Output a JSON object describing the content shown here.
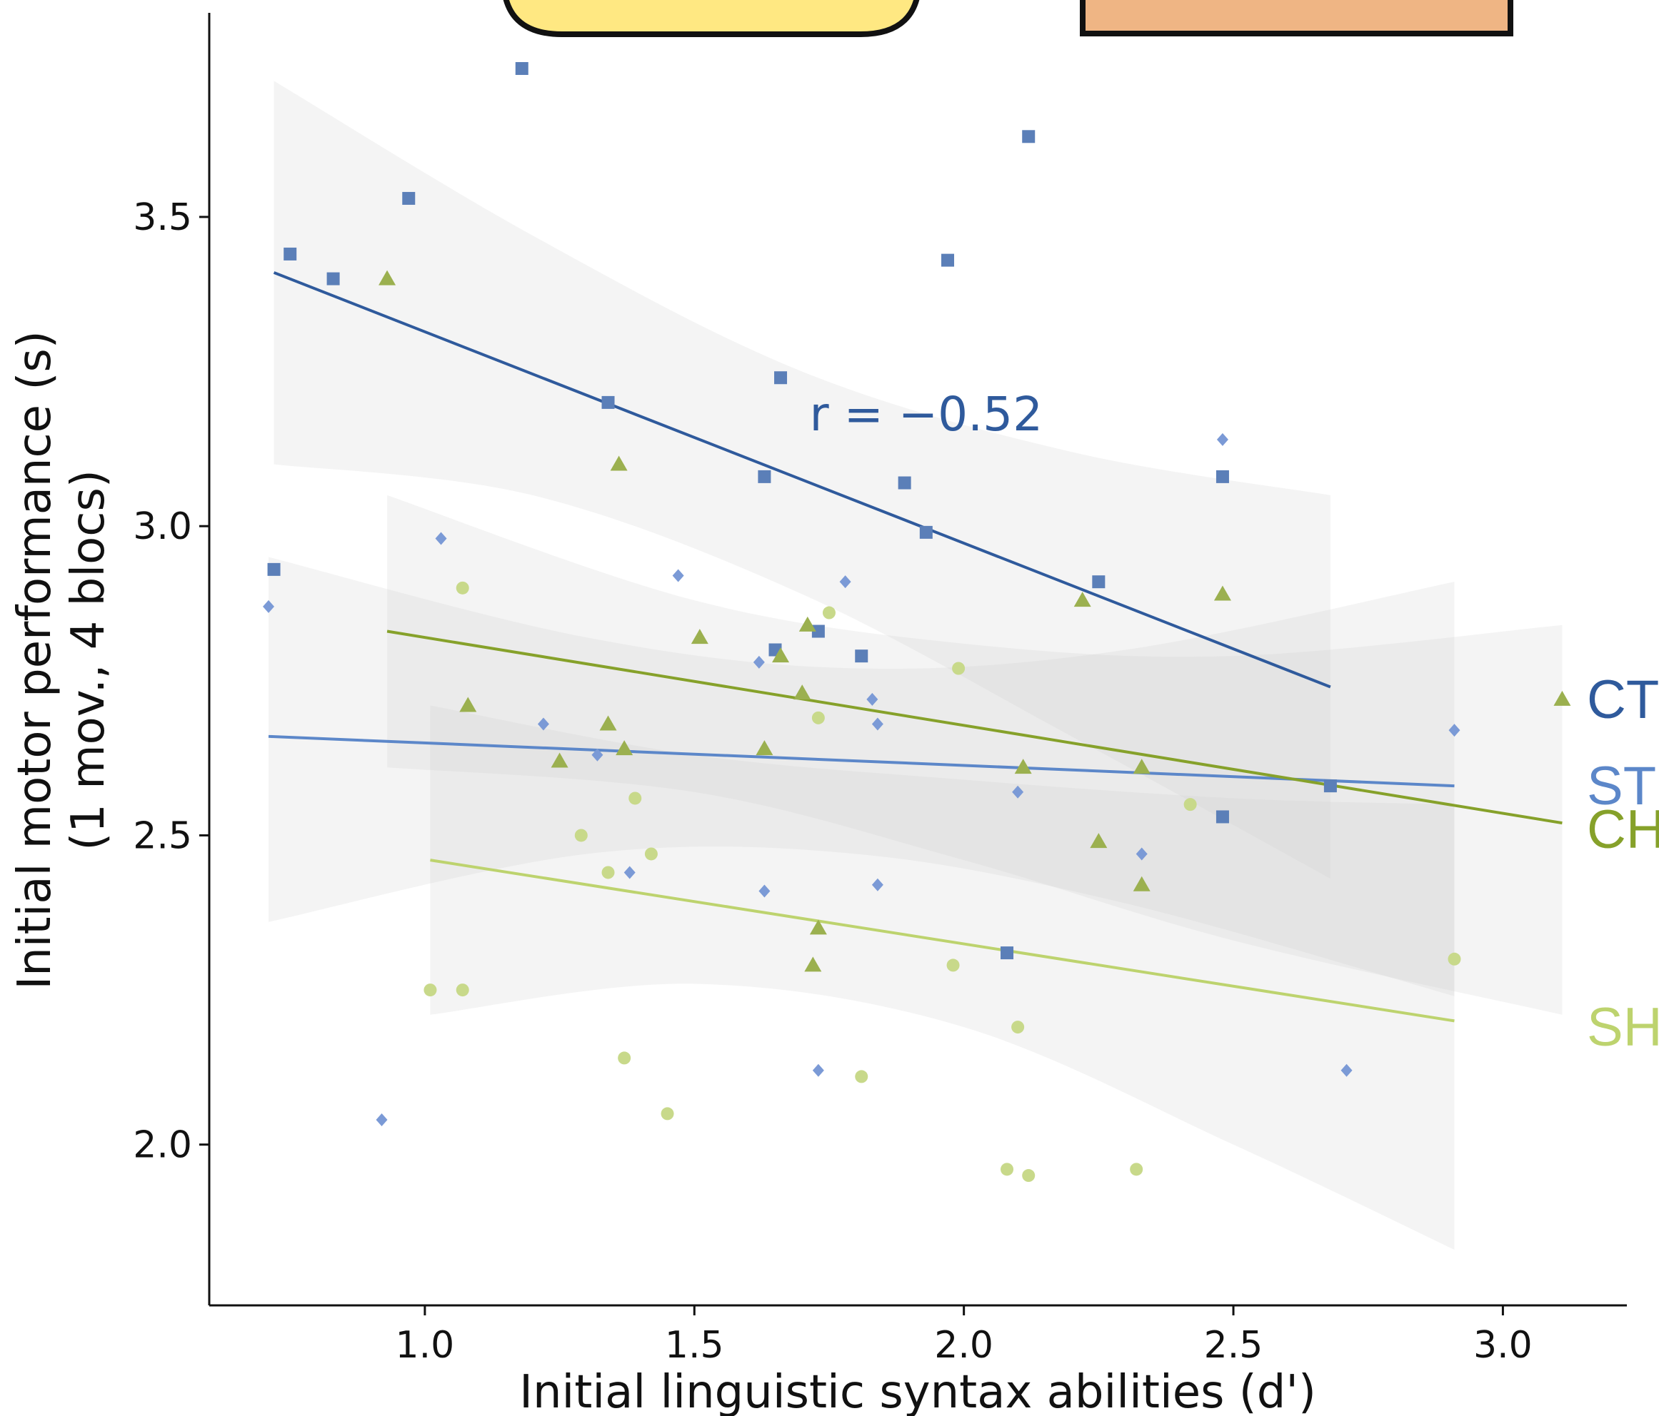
{
  "chart_data": {
    "type": "scatter",
    "title": "",
    "xlabel": "Initial linguistic syntax abilities (d')",
    "ylabel_lines": [
      "Initial motor performance (s)",
      "(1 mov., 4 blocs)"
    ],
    "xlim": [
      0.6,
      3.23
    ],
    "ylim": [
      1.74,
      3.83
    ],
    "x_ticks": [
      1.0,
      1.5,
      2.0,
      2.5,
      3.0
    ],
    "x_tick_labels": [
      "1.0",
      "1.5",
      "2.0",
      "2.5",
      "3.0"
    ],
    "y_ticks": [
      2.0,
      2.5,
      3.0,
      3.5
    ],
    "y_tick_labels": [
      "2.0",
      "2.5",
      "3.0",
      "3.5"
    ],
    "grid": false,
    "legend": "direct labels at right",
    "annotation": {
      "text": "r = −0.52",
      "x": 1.93,
      "y": 3.18,
      "color": "#2f5a9c"
    },
    "series": [
      {
        "name": "CT",
        "color": "#2f5a9c",
        "point_color": "#5b7fb8",
        "marker": "square",
        "label": {
          "text": "CT",
          "y": 2.72
        },
        "fit": {
          "x": [
            0.72,
            2.68
          ],
          "y": [
            3.41,
            2.74
          ]
        },
        "band": {
          "x": [
            0.72,
            1.2,
            1.7,
            2.2,
            2.68
          ],
          "upper": [
            3.72,
            3.47,
            3.25,
            3.12,
            3.05
          ],
          "lower": [
            3.1,
            3.05,
            2.89,
            2.66,
            2.43
          ]
        },
        "points": [
          [
            0.72,
            2.93
          ],
          [
            0.75,
            3.44
          ],
          [
            0.83,
            3.4
          ],
          [
            0.97,
            3.53
          ],
          [
            1.18,
            3.74
          ],
          [
            1.34,
            3.2
          ],
          [
            1.63,
            3.08
          ],
          [
            1.65,
            2.8
          ],
          [
            1.66,
            3.24
          ],
          [
            1.73,
            2.83
          ],
          [
            1.81,
            2.79
          ],
          [
            1.89,
            3.07
          ],
          [
            1.93,
            2.99
          ],
          [
            1.97,
            3.43
          ],
          [
            2.08,
            2.31
          ],
          [
            2.12,
            3.63
          ],
          [
            2.25,
            2.91
          ],
          [
            2.48,
            2.53
          ],
          [
            2.48,
            3.08
          ],
          [
            2.68,
            2.58
          ]
        ]
      },
      {
        "name": "ST",
        "color": "#5c87c9",
        "point_color": "#7b9ad6",
        "marker": "diamond",
        "label": {
          "text": "ST",
          "y": 2.58
        },
        "fit": {
          "x": [
            0.71,
            2.91
          ],
          "y": [
            2.66,
            2.58
          ]
        },
        "band": {
          "x": [
            0.71,
            1.3,
            1.8,
            2.3,
            2.91
          ],
          "upper": [
            2.95,
            2.82,
            2.77,
            2.8,
            2.91
          ],
          "lower": [
            2.36,
            2.47,
            2.47,
            2.39,
            2.24
          ]
        },
        "points": [
          [
            0.71,
            2.87
          ],
          [
            0.92,
            2.04
          ],
          [
            1.03,
            2.98
          ],
          [
            1.22,
            2.68
          ],
          [
            1.32,
            2.63
          ],
          [
            1.38,
            2.44
          ],
          [
            1.47,
            2.92
          ],
          [
            1.62,
            2.78
          ],
          [
            1.63,
            2.41
          ],
          [
            1.73,
            2.12
          ],
          [
            1.78,
            2.91
          ],
          [
            1.83,
            2.72
          ],
          [
            1.84,
            2.68
          ],
          [
            1.84,
            2.42
          ],
          [
            2.1,
            2.57
          ],
          [
            2.33,
            2.47
          ],
          [
            2.48,
            3.14
          ],
          [
            2.71,
            2.12
          ],
          [
            2.91,
            2.67
          ]
        ]
      },
      {
        "name": "CH",
        "color": "#86a12a",
        "point_color": "#9bb04f",
        "marker": "triangle",
        "label": {
          "text": "CH",
          "y": 2.51
        },
        "fit": {
          "x": [
            0.93,
            3.11
          ],
          "y": [
            2.83,
            2.52
          ]
        },
        "band": {
          "x": [
            0.93,
            1.5,
            2.0,
            2.5,
            3.11
          ],
          "upper": [
            3.05,
            2.88,
            2.81,
            2.79,
            2.84
          ],
          "lower": [
            2.61,
            2.57,
            2.46,
            2.33,
            2.21
          ]
        },
        "points": [
          [
            0.93,
            3.4
          ],
          [
            1.08,
            2.71
          ],
          [
            1.25,
            2.62
          ],
          [
            1.34,
            2.68
          ],
          [
            1.36,
            3.1
          ],
          [
            1.37,
            2.64
          ],
          [
            1.51,
            2.82
          ],
          [
            1.63,
            2.64
          ],
          [
            1.66,
            2.79
          ],
          [
            1.7,
            2.73
          ],
          [
            1.71,
            2.84
          ],
          [
            1.72,
            2.29
          ],
          [
            1.73,
            2.35
          ],
          [
            2.11,
            2.61
          ],
          [
            2.22,
            2.88
          ],
          [
            2.25,
            2.49
          ],
          [
            2.33,
            2.61
          ],
          [
            2.33,
            2.42
          ],
          [
            2.48,
            2.89
          ],
          [
            3.11,
            2.72
          ]
        ]
      },
      {
        "name": "SH",
        "color": "#bdd36e",
        "point_color": "#c8d98a",
        "marker": "circle",
        "label": {
          "text": "SH",
          "y": 2.19
        },
        "fit": {
          "x": [
            1.01,
            2.91
          ],
          "y": [
            2.46,
            2.2
          ]
        },
        "band": {
          "x": [
            1.01,
            1.5,
            2.0,
            2.5,
            2.91
          ],
          "upper": [
            2.71,
            2.63,
            2.59,
            2.56,
            2.55
          ],
          "lower": [
            2.21,
            2.26,
            2.19,
            2.0,
            1.83
          ]
        },
        "points": [
          [
            1.01,
            2.25
          ],
          [
            1.07,
            2.25
          ],
          [
            1.07,
            2.9
          ],
          [
            1.29,
            2.5
          ],
          [
            1.34,
            2.44
          ],
          [
            1.37,
            2.14
          ],
          [
            1.39,
            2.56
          ],
          [
            1.42,
            2.47
          ],
          [
            1.45,
            2.05
          ],
          [
            1.73,
            2.69
          ],
          [
            1.75,
            2.86
          ],
          [
            1.81,
            2.11
          ],
          [
            1.98,
            2.29
          ],
          [
            1.99,
            2.77
          ],
          [
            2.08,
            1.96
          ],
          [
            2.1,
            2.19
          ],
          [
            2.12,
            1.95
          ],
          [
            2.32,
            1.96
          ],
          [
            2.42,
            2.55
          ],
          [
            2.91,
            2.3
          ]
        ]
      }
    ],
    "legend_boxes": [
      {
        "name": "yellow-box",
        "color": "#ffe882"
      },
      {
        "name": "orange-box",
        "color": "#efb584"
      }
    ]
  }
}
